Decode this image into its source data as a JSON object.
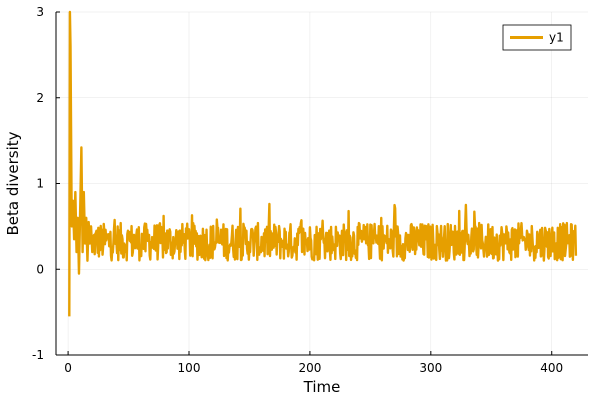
{
  "chart_data": {
    "type": "line",
    "title": "",
    "xlabel": "Time",
    "ylabel": "Beta diversity",
    "xlim": [
      -10,
      430
    ],
    "ylim": [
      -1,
      3
    ],
    "x_ticks": [
      0,
      100,
      200,
      300,
      400
    ],
    "y_ticks": [
      -1,
      0,
      1,
      2,
      3
    ],
    "grid": true,
    "legend_position": "top-right",
    "series": [
      {
        "name": "y1",
        "color": "#E69F00",
        "x_range": [
          1,
          420
        ],
        "description_values": {
          "x": [
            1,
            1.5,
            2,
            3,
            4,
            5,
            6,
            7,
            8,
            9,
            10,
            11,
            12,
            13,
            14,
            15,
            16,
            17,
            18,
            19,
            20,
            25,
            30,
            40,
            50,
            60,
            70,
            80,
            90,
            100,
            110,
            120,
            130,
            140,
            150,
            160,
            170,
            180,
            190,
            200,
            210,
            220,
            230,
            240,
            245,
            250,
            260,
            270,
            280,
            290,
            300,
            310,
            320,
            330,
            340,
            350,
            355,
            360,
            370,
            380,
            390,
            400,
            410,
            420
          ],
          "y": [
            -0.55,
            3.0,
            2.6,
            0.5,
            0.8,
            0.35,
            0.9,
            0.2,
            0.6,
            -0.05,
            0.7,
            1.42,
            0.2,
            0.9,
            0.3,
            0.6,
            0.1,
            0.55,
            0.3,
            0.5,
            0.2,
            0.45,
            0.3,
            0.35,
            0.4,
            0.3,
            0.35,
            0.3,
            0.35,
            0.3,
            0.4,
            0.35,
            0.3,
            0.4,
            0.3,
            0.35,
            0.3,
            0.35,
            0.3,
            0.35,
            0.3,
            0.35,
            0.4,
            0.35,
            0.4,
            0.45,
            0.3,
            0.35,
            0.3,
            0.35,
            0.3,
            0.35,
            0.3,
            0.35,
            0.3,
            0.35,
            0.45,
            0.3,
            0.35,
            0.3,
            0.35,
            0.3,
            0.3,
            0.2
          ]
        },
        "noise": {
          "base": 0.32,
          "amplitude": 0.22,
          "peak_max": 0.78,
          "trough_min": 0.05
        }
      }
    ]
  }
}
